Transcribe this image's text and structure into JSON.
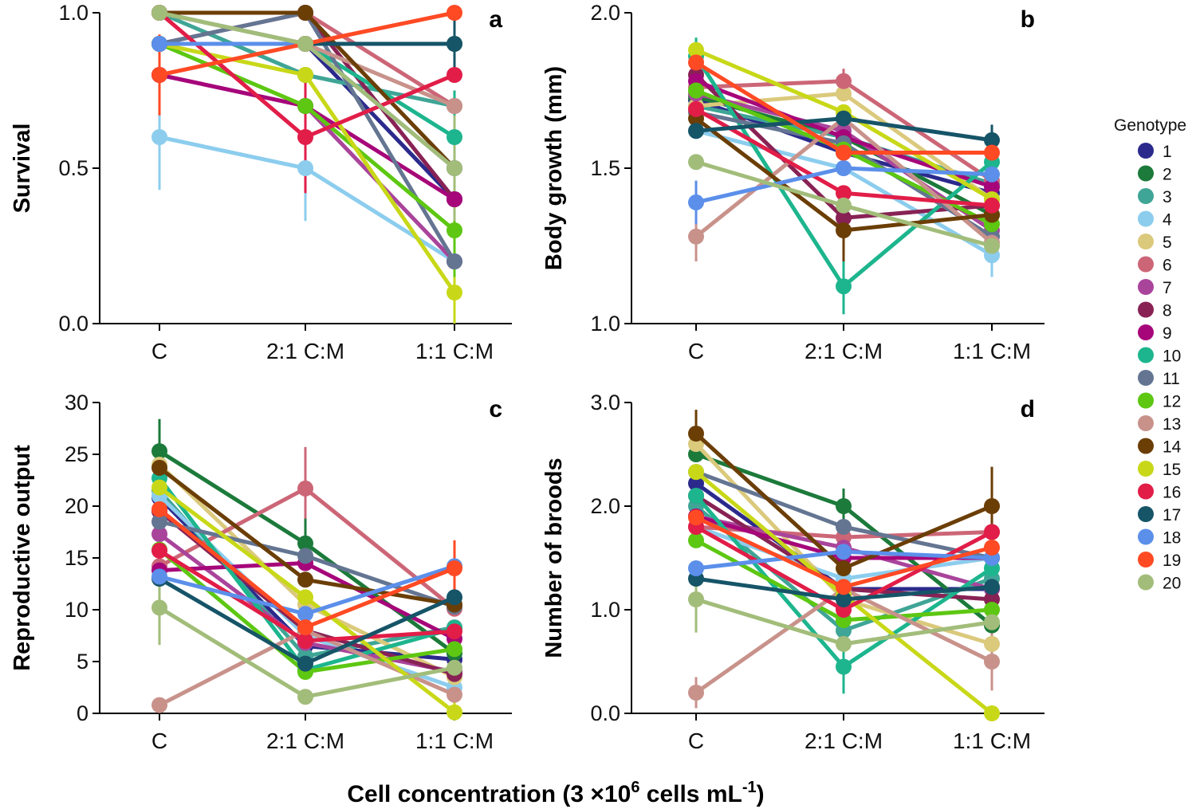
{
  "figure": {
    "xlabel_prefix": "Cell concentration (3 ×10",
    "xlabel_exp": "6",
    "xlabel_mid": " cells mL",
    "xlabel_exp2": "-1",
    "xlabel_suffix": ")"
  },
  "legend": {
    "title": "Genotype",
    "items": [
      {
        "label": "1",
        "color": "#2B2A8C"
      },
      {
        "label": "2",
        "color": "#1C7A3A"
      },
      {
        "label": "3",
        "color": "#3FA596"
      },
      {
        "label": "4",
        "color": "#8CCDEE"
      },
      {
        "label": "5",
        "color": "#DBC97C"
      },
      {
        "label": "6",
        "color": "#CC6677"
      },
      {
        "label": "7",
        "color": "#A9449B"
      },
      {
        "label": "8",
        "color": "#882255"
      },
      {
        "label": "9",
        "color": "#A6067A"
      },
      {
        "label": "10",
        "color": "#1DB58E"
      },
      {
        "label": "11",
        "color": "#647592"
      },
      {
        "label": "12",
        "color": "#5DC712"
      },
      {
        "label": "13",
        "color": "#C8928B"
      },
      {
        "label": "14",
        "color": "#6B3E06"
      },
      {
        "label": "15",
        "color": "#C8D818"
      },
      {
        "label": "16",
        "color": "#E11D48"
      },
      {
        "label": "17",
        "color": "#165468"
      },
      {
        "label": "18",
        "color": "#5B8FEA"
      },
      {
        "label": "19",
        "color": "#FF4A24"
      },
      {
        "label": "20",
        "color": "#A2BD7A"
      }
    ]
  },
  "chart_data": [
    {
      "type": "line",
      "panel": "a",
      "ylabel": "Survival",
      "categories": [
        "C",
        "2:1 C:M",
        "1:1 C:M"
      ],
      "ylim": [
        0,
        1
      ],
      "yticks": [
        0,
        0.5,
        1
      ],
      "ytick_labels": [
        "0.0",
        "0.5",
        "1.0"
      ],
      "series": [
        {
          "name": "1",
          "values": [
            0.9,
            0.9,
            0.4
          ]
        },
        {
          "name": "2",
          "values": [
            0.9,
            0.9,
            0.9
          ]
        },
        {
          "name": "3",
          "values": [
            1.0,
            0.8,
            0.7
          ]
        },
        {
          "name": "4",
          "values": [
            0.6,
            0.5,
            0.2
          ]
        },
        {
          "name": "5",
          "values": [
            1.0,
            0.9,
            0.5
          ]
        },
        {
          "name": "6",
          "values": [
            1.0,
            1.0,
            0.7
          ]
        },
        {
          "name": "7",
          "values": [
            0.8,
            0.7,
            0.2
          ]
        },
        {
          "name": "8",
          "values": [
            0.9,
            1.0,
            0.4
          ]
        },
        {
          "name": "9",
          "values": [
            0.8,
            0.7,
            0.4
          ]
        },
        {
          "name": "10",
          "values": [
            1.0,
            0.9,
            0.6
          ]
        },
        {
          "name": "11",
          "values": [
            0.9,
            1.0,
            0.2
          ]
        },
        {
          "name": "12",
          "values": [
            0.9,
            0.7,
            0.3
          ]
        },
        {
          "name": "13",
          "values": [
            1.0,
            0.9,
            0.7
          ]
        },
        {
          "name": "14",
          "values": [
            1.0,
            1.0,
            0.5
          ]
        },
        {
          "name": "15",
          "values": [
            0.9,
            0.8,
            0.1
          ]
        },
        {
          "name": "16",
          "values": [
            1.0,
            0.6,
            0.8
          ]
        },
        {
          "name": "17",
          "values": [
            0.9,
            0.9,
            0.9
          ]
        },
        {
          "name": "18",
          "values": [
            0.9,
            0.9,
            0.5
          ]
        },
        {
          "name": "19",
          "values": [
            0.8,
            0.9,
            1.0
          ]
        },
        {
          "name": "20",
          "values": [
            1.0,
            0.9,
            0.5
          ]
        }
      ],
      "errors": [
        {
          "name": "4",
          "index": 0,
          "low": 0.43,
          "high": 0.77
        },
        {
          "name": "4",
          "index": 1,
          "low": 0.33,
          "high": 0.67
        },
        {
          "name": "19",
          "index": 0,
          "low": 0.67,
          "high": 0.93
        },
        {
          "name": "16",
          "index": 1,
          "low": 0.42,
          "high": 0.78
        },
        {
          "name": "15",
          "index": 2,
          "low": 0.0,
          "high": 0.2
        },
        {
          "name": "17",
          "index": 2,
          "low": 0.8,
          "high": 1.0
        },
        {
          "name": "12",
          "index": 2,
          "low": 0.15,
          "high": 0.45
        },
        {
          "name": "10",
          "index": 2,
          "low": 0.45,
          "high": 0.75
        },
        {
          "name": "20",
          "index": 2,
          "low": 0.33,
          "high": 0.67
        }
      ]
    },
    {
      "type": "line",
      "panel": "b",
      "ylabel": "Body growth (mm)",
      "categories": [
        "C",
        "2:1 C:M",
        "1:1 C:M"
      ],
      "ylim": [
        1,
        2
      ],
      "yticks": [
        1,
        1.5,
        2
      ],
      "ytick_labels": [
        "1.0",
        "1.5",
        "2.0"
      ],
      "series": [
        {
          "name": "1",
          "values": [
            1.72,
            1.55,
            1.42
          ]
        },
        {
          "name": "2",
          "values": [
            1.73,
            1.6,
            1.35
          ]
        },
        {
          "name": "3",
          "values": [
            1.7,
            1.6,
            1.45
          ]
        },
        {
          "name": "4",
          "values": [
            1.62,
            1.5,
            1.22
          ]
        },
        {
          "name": "5",
          "values": [
            1.7,
            1.74,
            1.4
          ]
        },
        {
          "name": "6",
          "values": [
            1.76,
            1.78,
            1.46
          ]
        },
        {
          "name": "7",
          "values": [
            1.74,
            1.62,
            1.3
          ]
        },
        {
          "name": "8",
          "values": [
            1.8,
            1.34,
            1.38
          ]
        },
        {
          "name": "9",
          "values": [
            1.78,
            1.6,
            1.44
          ]
        },
        {
          "name": "10",
          "values": [
            1.86,
            1.12,
            1.52
          ]
        },
        {
          "name": "11",
          "values": [
            1.68,
            1.58,
            1.28
          ]
        },
        {
          "name": "12",
          "values": [
            1.75,
            1.56,
            1.32
          ]
        },
        {
          "name": "13",
          "values": [
            1.28,
            1.66,
            1.26
          ]
        },
        {
          "name": "14",
          "values": [
            1.66,
            1.3,
            1.35
          ]
        },
        {
          "name": "15",
          "values": [
            1.88,
            1.68,
            1.4
          ]
        },
        {
          "name": "16",
          "values": [
            1.69,
            1.42,
            1.38
          ]
        },
        {
          "name": "17",
          "values": [
            1.62,
            1.66,
            1.59
          ]
        },
        {
          "name": "18",
          "values": [
            1.39,
            1.5,
            1.48
          ]
        },
        {
          "name": "19",
          "values": [
            1.84,
            1.55,
            1.55
          ]
        },
        {
          "name": "20",
          "values": [
            1.52,
            1.38,
            1.25
          ]
        }
      ],
      "errors": [
        {
          "name": "10",
          "index": 0,
          "low": 1.79,
          "high": 1.92
        },
        {
          "name": "10",
          "index": 1,
          "low": 1.03,
          "high": 1.21
        },
        {
          "name": "13",
          "index": 0,
          "low": 1.2,
          "high": 1.36
        },
        {
          "name": "18",
          "index": 0,
          "low": 1.32,
          "high": 1.46
        },
        {
          "name": "14",
          "index": 1,
          "low": 1.2,
          "high": 1.4
        },
        {
          "name": "6",
          "index": 1,
          "low": 1.73,
          "high": 1.82
        },
        {
          "name": "17",
          "index": 2,
          "low": 1.55,
          "high": 1.64
        },
        {
          "name": "4",
          "index": 2,
          "low": 1.15,
          "high": 1.29
        }
      ]
    },
    {
      "type": "line",
      "panel": "c",
      "ylabel": "Reproductive output",
      "categories": [
        "C",
        "2:1 C:M",
        "1:1 C:M"
      ],
      "ylim": [
        0,
        30
      ],
      "yticks": [
        0,
        5,
        10,
        15,
        20,
        25,
        30
      ],
      "ytick_labels": [
        "0",
        "5",
        "10",
        "15",
        "20",
        "25",
        "30"
      ],
      "series": [
        {
          "name": "1",
          "values": [
            20.8,
            6.5,
            5.2
          ]
        },
        {
          "name": "2",
          "values": [
            25.3,
            16.4,
            5.8
          ]
        },
        {
          "name": "3",
          "values": [
            21.5,
            5.5,
            8.3
          ]
        },
        {
          "name": "4",
          "values": [
            21.0,
            7.5,
            2.5
          ]
        },
        {
          "name": "5",
          "values": [
            24.0,
            10.5,
            3.5
          ]
        },
        {
          "name": "6",
          "values": [
            14.2,
            21.7,
            10.1
          ]
        },
        {
          "name": "7",
          "values": [
            17.3,
            6.8,
            4.0
          ]
        },
        {
          "name": "8",
          "values": [
            19.5,
            8.0,
            3.8
          ]
        },
        {
          "name": "9",
          "values": [
            13.8,
            14.5,
            7.2
          ]
        },
        {
          "name": "10",
          "values": [
            22.7,
            4.2,
            8.2
          ]
        },
        {
          "name": "11",
          "values": [
            18.5,
            15.2,
            10.3
          ]
        },
        {
          "name": "12",
          "values": [
            15.8,
            4.0,
            6.2
          ]
        },
        {
          "name": "13",
          "values": [
            0.8,
            8.0,
            1.8
          ]
        },
        {
          "name": "14",
          "values": [
            23.7,
            12.9,
            10.5
          ]
        },
        {
          "name": "15",
          "values": [
            21.8,
            11.2,
            0.1
          ]
        },
        {
          "name": "16",
          "values": [
            15.7,
            7.0,
            7.9
          ]
        },
        {
          "name": "17",
          "values": [
            13.0,
            4.8,
            11.2
          ]
        },
        {
          "name": "18",
          "values": [
            13.2,
            9.6,
            14.2
          ]
        },
        {
          "name": "19",
          "values": [
            19.7,
            8.3,
            14.0
          ]
        },
        {
          "name": "20",
          "values": [
            10.2,
            1.6,
            4.4
          ]
        }
      ],
      "errors": [
        {
          "name": "2",
          "index": 0,
          "low": 22.1,
          "high": 28.4
        },
        {
          "name": "20",
          "index": 0,
          "low": 6.6,
          "high": 13.8
        },
        {
          "name": "6",
          "index": 1,
          "low": 17.7,
          "high": 25.7
        },
        {
          "name": "19",
          "index": 2,
          "low": 11.3,
          "high": 16.7
        },
        {
          "name": "2",
          "index": 1,
          "low": 14.0,
          "high": 18.8
        },
        {
          "name": "15",
          "index": 2,
          "low": 0.0,
          "high": 2.0
        }
      ]
    },
    {
      "type": "line",
      "panel": "d",
      "ylabel": "Number of broods",
      "categories": [
        "C",
        "2:1 C:M",
        "1:1 C:M"
      ],
      "ylim": [
        0,
        3
      ],
      "yticks": [
        0,
        1,
        2,
        3
      ],
      "ytick_labels": [
        "0.0",
        "1.0",
        "2.0",
        "3.0"
      ],
      "series": [
        {
          "name": "1",
          "values": [
            2.22,
            1.2,
            1.2
          ]
        },
        {
          "name": "2",
          "values": [
            2.5,
            2.0,
            0.85
          ]
        },
        {
          "name": "3",
          "values": [
            2.0,
            0.8,
            1.3
          ]
        },
        {
          "name": "4",
          "values": [
            1.8,
            1.3,
            1.5
          ]
        },
        {
          "name": "5",
          "values": [
            2.6,
            1.1,
            0.67
          ]
        },
        {
          "name": "6",
          "values": [
            1.8,
            1.7,
            1.75
          ]
        },
        {
          "name": "7",
          "values": [
            1.9,
            1.6,
            1.2
          ]
        },
        {
          "name": "8",
          "values": [
            2.1,
            1.2,
            1.1
          ]
        },
        {
          "name": "9",
          "values": [
            1.9,
            1.5,
            1.5
          ]
        },
        {
          "name": "10",
          "values": [
            2.1,
            0.45,
            1.4
          ]
        },
        {
          "name": "11",
          "values": [
            2.33,
            1.8,
            1.5
          ]
        },
        {
          "name": "12",
          "values": [
            1.67,
            0.9,
            1.0
          ]
        },
        {
          "name": "13",
          "values": [
            0.2,
            1.2,
            0.5
          ]
        },
        {
          "name": "14",
          "values": [
            2.7,
            1.4,
            2.0
          ]
        },
        {
          "name": "15",
          "values": [
            2.33,
            1.14,
            0.0
          ]
        },
        {
          "name": "16",
          "values": [
            1.8,
            1.0,
            1.75
          ]
        },
        {
          "name": "17",
          "values": [
            1.3,
            1.1,
            1.22
          ]
        },
        {
          "name": "18",
          "values": [
            1.4,
            1.56,
            1.5
          ]
        },
        {
          "name": "19",
          "values": [
            1.89,
            1.22,
            1.6
          ]
        },
        {
          "name": "20",
          "values": [
            1.1,
            0.67,
            0.88
          ]
        }
      ],
      "errors": [
        {
          "name": "14",
          "index": 0,
          "low": 2.47,
          "high": 2.93
        },
        {
          "name": "20",
          "index": 0,
          "low": 0.78,
          "high": 1.42
        },
        {
          "name": "13",
          "index": 0,
          "low": 0.05,
          "high": 0.35
        },
        {
          "name": "2",
          "index": 1,
          "low": 1.83,
          "high": 2.17
        },
        {
          "name": "10",
          "index": 1,
          "low": 0.19,
          "high": 0.71
        },
        {
          "name": "14",
          "index": 2,
          "low": 1.62,
          "high": 2.38
        },
        {
          "name": "13",
          "index": 2,
          "low": 0.22,
          "high": 0.78
        }
      ]
    }
  ]
}
